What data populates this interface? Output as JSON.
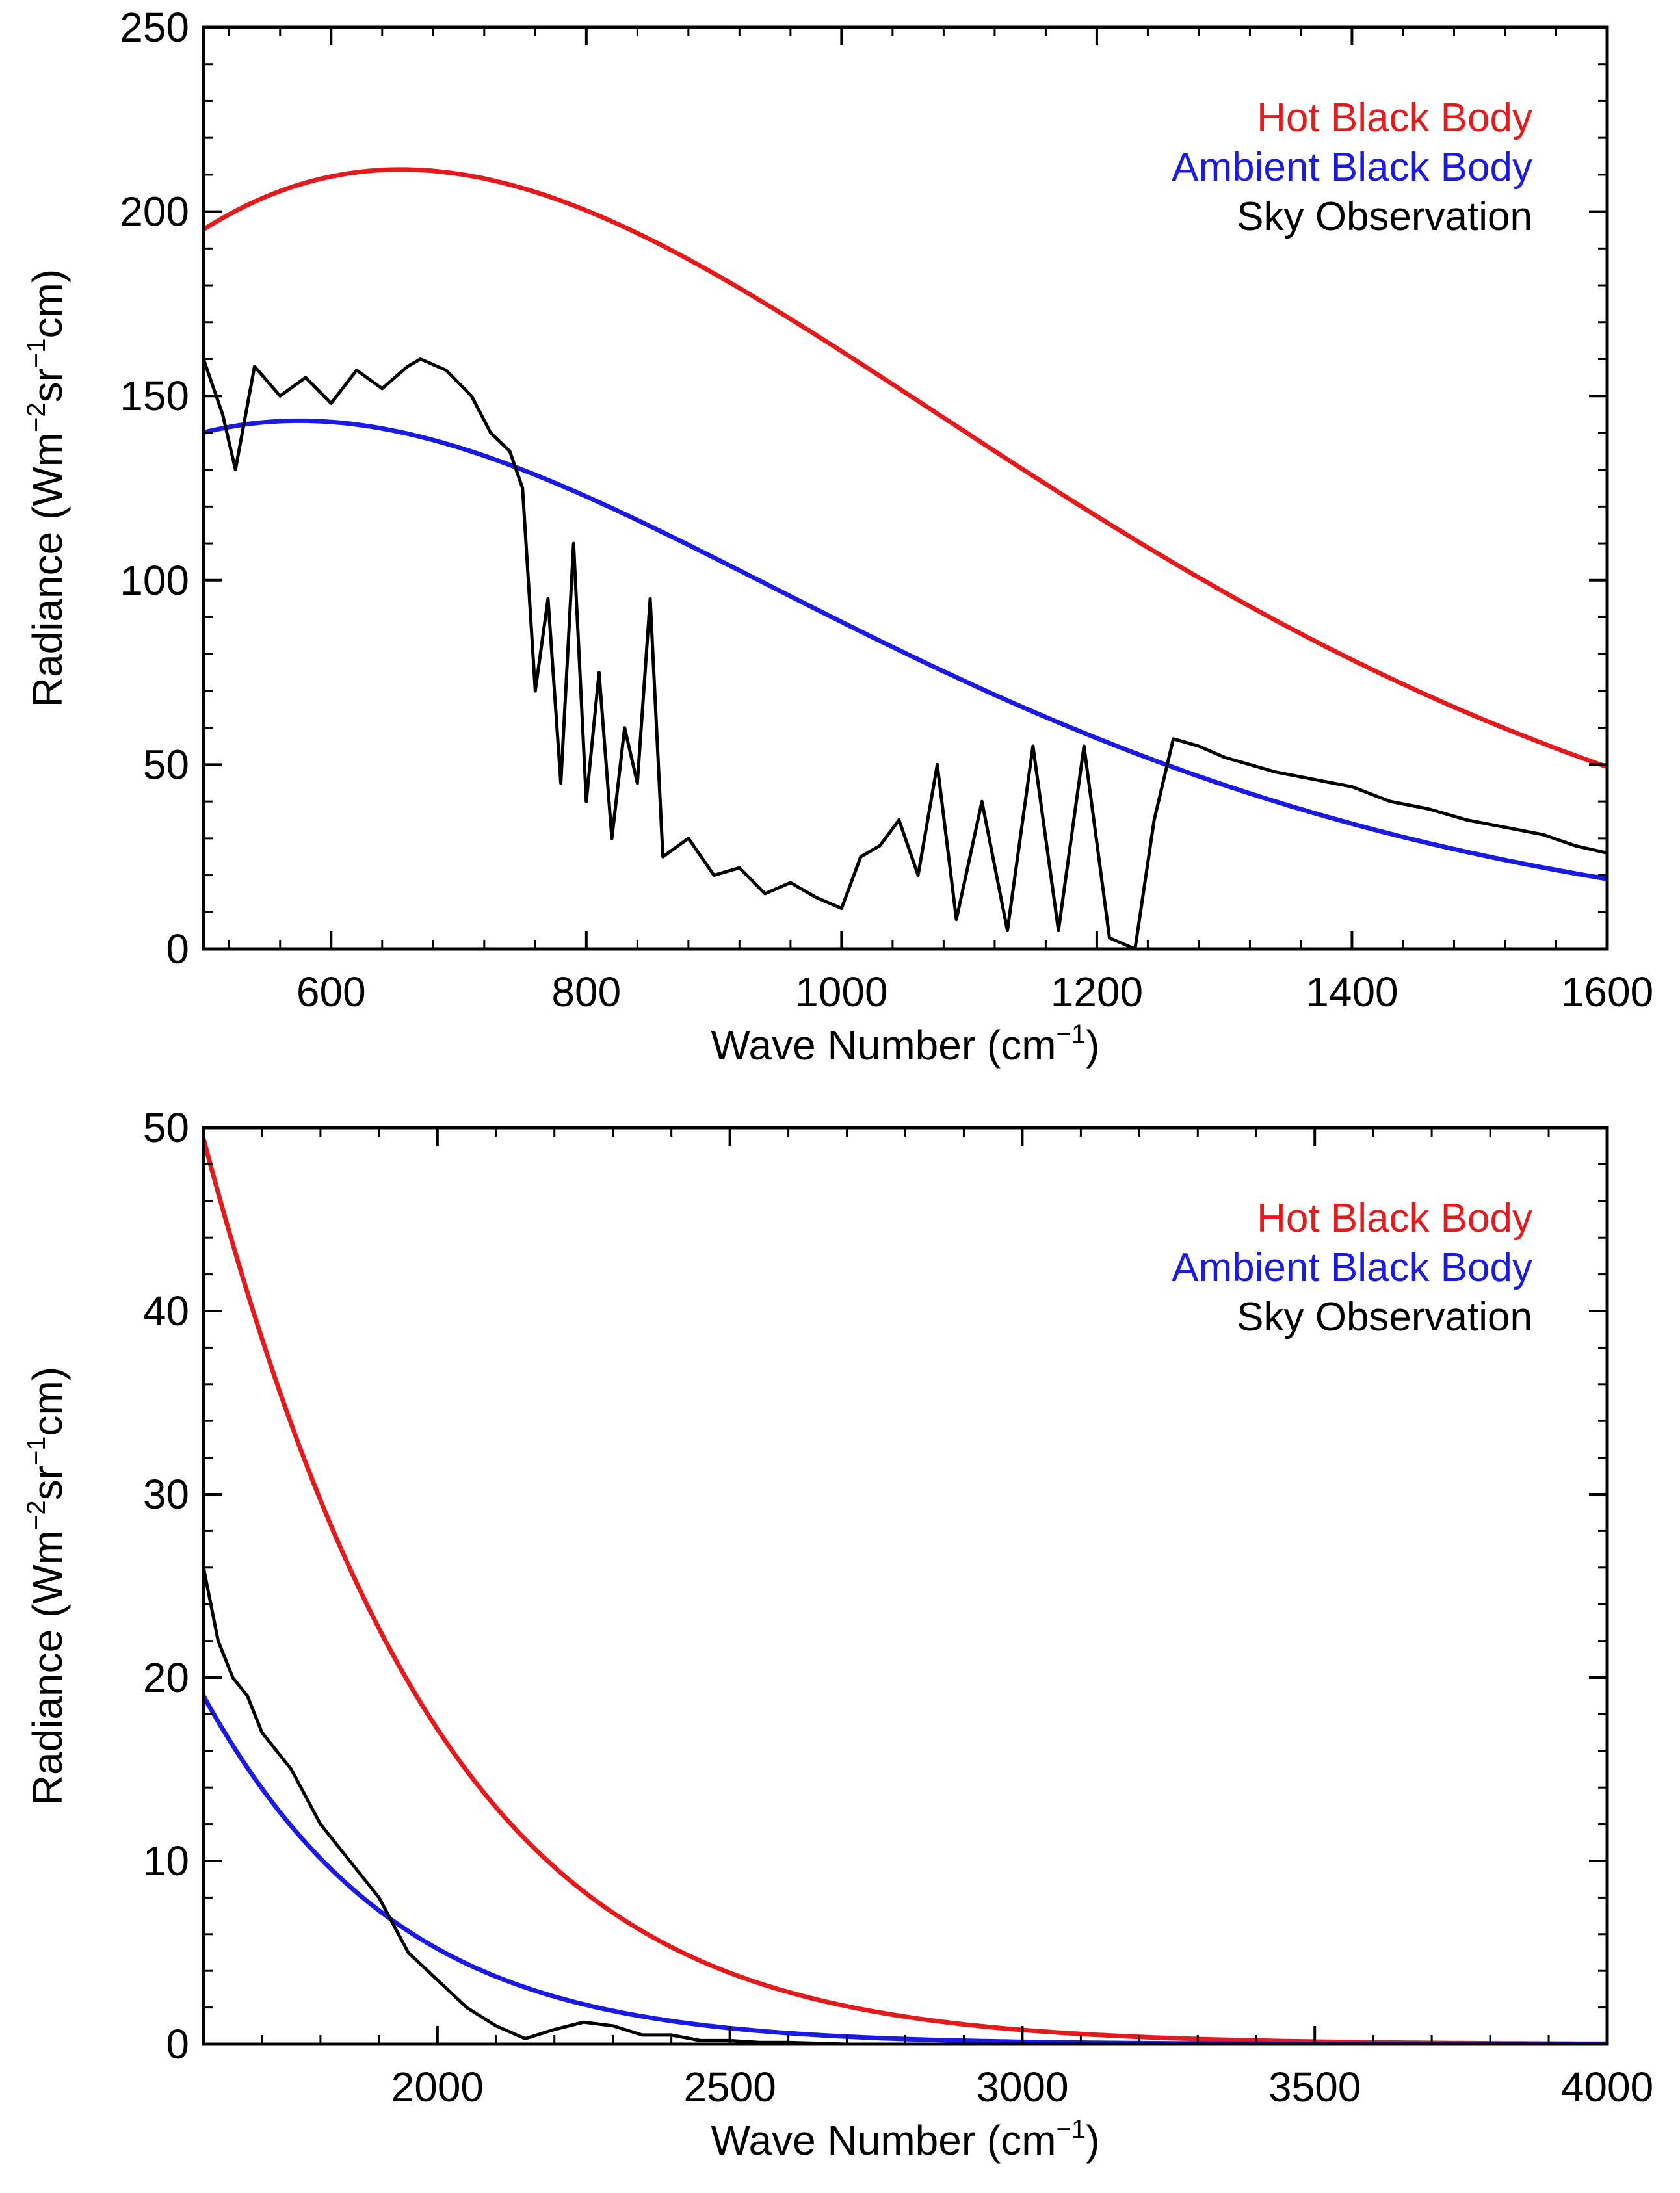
{
  "chart_data": [
    {
      "type": "line",
      "xlabel": "Wave Number (cm⁻¹)",
      "xlabel_main": "Wave Number (cm",
      "xlabel_sup": "−1",
      "xlabel_close": ")",
      "ylabel": "Radiance (Wm⁻²sr⁻¹cm)",
      "ylabel_parts": [
        "Radiance (Wm",
        "−2",
        "sr",
        "−1",
        "cm)"
      ],
      "xlim": [
        500,
        1600
      ],
      "ylim": [
        0,
        250
      ],
      "xticks": [
        600,
        800,
        1000,
        1200,
        1400,
        1600
      ],
      "xtick_labels": [
        "600",
        "800",
        "1000",
        "1200",
        "1400",
        "1600"
      ],
      "yticks": [
        0,
        50,
        100,
        150,
        200,
        250
      ],
      "ytick_labels": [
        "0",
        "50",
        "100",
        "150",
        "200",
        "250"
      ],
      "legend_position": "top-right",
      "series": [
        {
          "name": "Hot Black Body",
          "color": "#e41a1c",
          "model": "planck",
          "temperature_K": 333.8
        },
        {
          "name": "Ambient Black Body",
          "color": "#1a1ae4",
          "model": "planck",
          "temperature_K": 293.2
        },
        {
          "name": "Sky Observation",
          "color": "#000000",
          "model": "observed",
          "x": [
            500,
            515,
            525,
            540,
            560,
            580,
            600,
            620,
            640,
            660,
            670,
            690,
            710,
            725,
            740,
            750,
            760,
            770,
            780,
            790,
            800,
            810,
            820,
            830,
            840,
            850,
            860,
            880,
            900,
            920,
            940,
            960,
            980,
            1000,
            1015,
            1030,
            1045,
            1060,
            1075,
            1090,
            1110,
            1130,
            1150,
            1170,
            1190,
            1210,
            1230,
            1245,
            1260,
            1280,
            1300,
            1320,
            1340,
            1370,
            1400,
            1430,
            1460,
            1490,
            1520,
            1550,
            1575,
            1600
          ],
          "y": [
            160,
            145,
            130,
            158,
            150,
            155,
            148,
            157,
            152,
            158,
            160,
            157,
            150,
            140,
            135,
            125,
            70,
            95,
            45,
            110,
            40,
            75,
            30,
            60,
            45,
            95,
            25,
            30,
            20,
            22,
            15,
            18,
            14,
            11,
            25,
            28,
            35,
            20,
            50,
            8,
            40,
            5,
            55,
            5,
            55,
            3,
            0,
            35,
            57,
            55,
            52,
            50,
            48,
            46,
            44,
            40,
            38,
            35,
            33,
            31,
            28,
            26
          ]
        }
      ]
    },
    {
      "type": "line",
      "xlabel": "Wave Number (cm⁻¹)",
      "xlabel_main": "Wave Number (cm",
      "xlabel_sup": "−1",
      "xlabel_close": ")",
      "ylabel": "Radiance (Wm⁻²sr⁻¹cm)",
      "ylabel_parts": [
        "Radiance (Wm",
        "−2",
        "sr",
        "−1",
        "cm)"
      ],
      "xlim": [
        1600,
        4000
      ],
      "ylim": [
        0,
        50
      ],
      "xticks": [
        2000,
        2500,
        3000,
        3500,
        4000
      ],
      "xtick_labels": [
        "2000",
        "2500",
        "3000",
        "3500",
        "4000"
      ],
      "yticks": [
        0,
        10,
        20,
        30,
        40,
        50
      ],
      "ytick_labels": [
        "0",
        "10",
        "20",
        "30",
        "40",
        "50"
      ],
      "legend_position": "top-right",
      "series": [
        {
          "name": "Hot Black Body",
          "color": "#e41a1c",
          "model": "planck",
          "temperature_K": 333.8
        },
        {
          "name": "Ambient Black Body",
          "color": "#1a1ae4",
          "model": "planck",
          "temperature_K": 293.2
        },
        {
          "name": "Sky Observation",
          "color": "#000000",
          "model": "observed",
          "x": [
            1600,
            1625,
            1650,
            1675,
            1700,
            1725,
            1750,
            1800,
            1850,
            1900,
            1950,
            2000,
            2050,
            2100,
            2150,
            2200,
            2250,
            2300,
            2350,
            2400,
            2450,
            2500,
            2550,
            2600,
            2700
          ],
          "y": [
            26,
            22,
            20,
            19,
            17,
            16,
            15,
            12,
            10,
            8,
            5,
            3.5,
            2,
            1,
            0.3,
            0.8,
            1.2,
            1,
            0.5,
            0.5,
            0.2,
            0.2,
            0.1,
            0.1,
            0
          ]
        }
      ]
    }
  ]
}
